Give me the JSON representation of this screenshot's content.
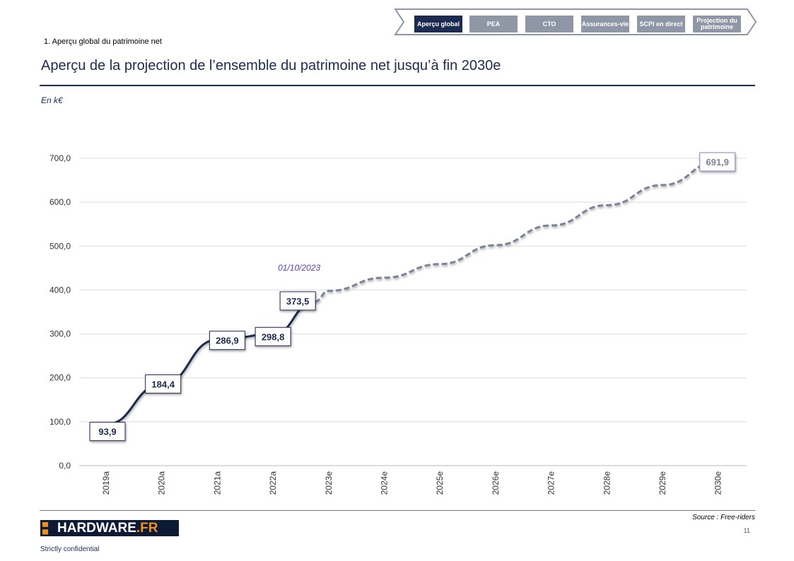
{
  "nav": {
    "items": [
      {
        "label": "Aperçu global",
        "active": true
      },
      {
        "label": "PEA",
        "active": false
      },
      {
        "label": "CTO",
        "active": false
      },
      {
        "label": "Assurances-vie",
        "active": false
      },
      {
        "label": "SCPI en direct",
        "active": false
      },
      {
        "label": "Projection du patrimoine",
        "active": false
      }
    ]
  },
  "header": {
    "section": "1. Aperçu global du patrimoine net",
    "title": "Aperçu de la projection de l’ensemble du patrimoine net jusqu’à fin 2030e",
    "unit": "En k€"
  },
  "chart_data": {
    "type": "line",
    "categories": [
      "2019a",
      "2020a",
      "2021a",
      "2022a",
      "2023e",
      "2024e",
      "2025e",
      "2026e",
      "2027e",
      "2028e",
      "2029e",
      "2030e"
    ],
    "ylim": [
      0,
      700
    ],
    "yticks": [
      "0,0",
      "100,0",
      "200,0",
      "300,0",
      "400,0",
      "500,0",
      "600,0",
      "700,0"
    ],
    "grid": true,
    "series": [
      {
        "style": "solid",
        "color": "#1c2b4f",
        "points": [
          {
            "x": "2019a",
            "y": 93.9,
            "label": "93,9"
          },
          {
            "x": "2020a",
            "y": 184.4,
            "label": "184,4"
          },
          {
            "x": "2021a",
            "y": 286.9,
            "label": "286,9"
          },
          {
            "x": "2022a",
            "y": 298.8,
            "label": "298,8"
          },
          {
            "x": "01/10/2023",
            "y": 373.5,
            "label": "373,5"
          }
        ]
      },
      {
        "style": "dashed",
        "color": "#7a8299",
        "points": [
          {
            "x": "01/10/2023",
            "y": 373.5
          },
          {
            "x": "2023e",
            "y": 398
          },
          {
            "x": "2024e",
            "y": 428
          },
          {
            "x": "2025e",
            "y": 459
          },
          {
            "x": "2026e",
            "y": 502
          },
          {
            "x": "2027e",
            "y": 547
          },
          {
            "x": "2028e",
            "y": 593
          },
          {
            "x": "2029e",
            "y": 639
          },
          {
            "x": "2030e",
            "y": 691.9,
            "label": "691,9"
          }
        ]
      }
    ],
    "annotation": {
      "text": "01/10/2023",
      "color": "#5b3fb5"
    }
  },
  "footer": {
    "source": "Source : Free-riders",
    "page": "11",
    "logo": {
      "main": "HARDWARE",
      "suffix": ".FR"
    },
    "confidential": "Strictly confidential"
  }
}
